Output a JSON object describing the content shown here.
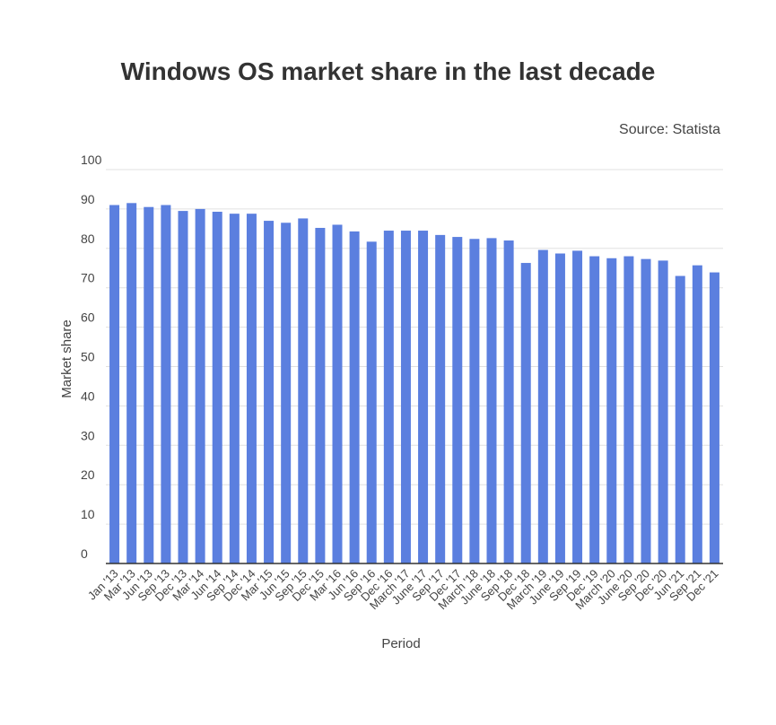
{
  "chart_data": {
    "type": "bar",
    "title": "Windows OS market share in the last decade",
    "subtitle": "Source: Statista",
    "xlabel": "Period",
    "ylabel": "Market share",
    "ylim": [
      0,
      100
    ],
    "yticks": [
      0,
      10,
      20,
      30,
      40,
      50,
      60,
      70,
      80,
      90,
      100
    ],
    "grid": true,
    "color": "#5b7fdf",
    "categories": [
      "Jan '13",
      "Mar '13",
      "Jun '13",
      "Sep '13",
      "Dec '13",
      "Mar '14",
      "Jun '14",
      "Sep '14",
      "Dec '14",
      "Mar '15",
      "Jun '15",
      "Sep '15",
      "Dec '15",
      "Mar '16",
      "Jun '16",
      "Sep '16",
      "Dec '16",
      "March '17",
      "June '17",
      "Sep '17",
      "Dec '17",
      "March '18",
      "June '18",
      "Sep '18",
      "Dec '18",
      "March '19",
      "June '19",
      "Sep '19",
      "Dec '19",
      "March '20",
      "June '20",
      "Sep '20",
      "Dec '20",
      "Jun '21",
      "Sep '21",
      "Dec '21"
    ],
    "values": [
      91.0,
      91.5,
      90.5,
      91.0,
      89.5,
      90.0,
      89.3,
      88.8,
      88.8,
      87.0,
      86.5,
      87.6,
      85.2,
      86.0,
      84.3,
      81.7,
      84.5,
      84.5,
      84.5,
      83.4,
      82.9,
      82.4,
      82.6,
      82.0,
      76.3,
      79.6,
      78.7,
      79.4,
      78.0,
      77.5,
      78.0,
      77.3,
      76.9,
      73.0,
      75.7,
      73.9
    ]
  }
}
